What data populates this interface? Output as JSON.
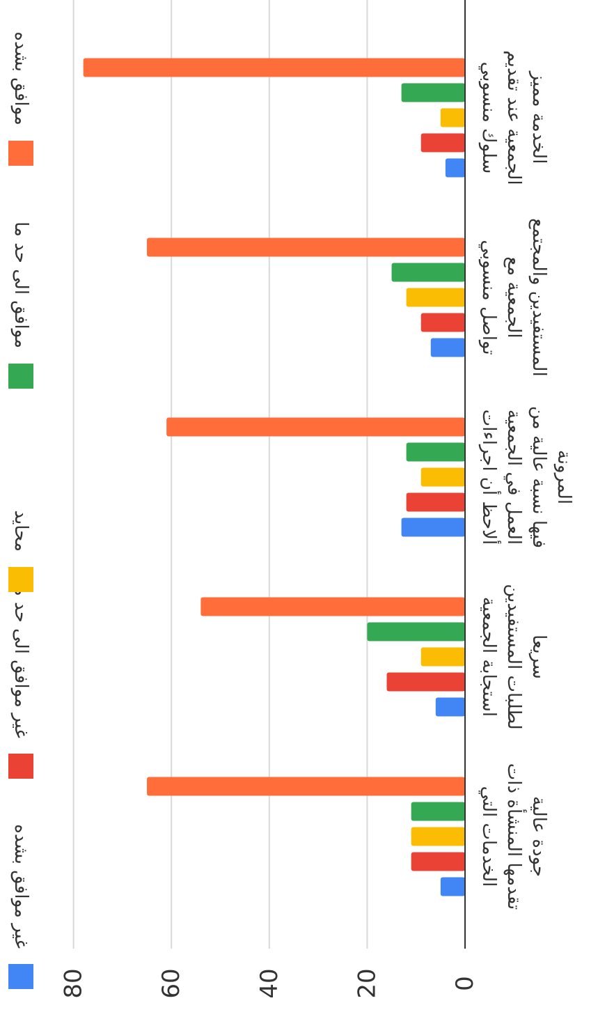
{
  "chart_data": {
    "type": "bar",
    "orientation": "rotated 90 degrees clockwise",
    "ylim": [
      0,
      80
    ],
    "y_ticks": [
      0,
      20,
      40,
      60,
      80
    ],
    "grid": true,
    "legend_position": "top",
    "categories": [
      [
        "سلوك منسوبي",
        "الجمعية عند تقديم",
        "الخدمة مميز"
      ],
      [
        "تواصل منسوبي",
        "الجمعية مع",
        "المستفيدين والمجتمع"
      ],
      [
        "ألاحظ أن اجراءات",
        "العمل في الجمعية",
        "فيها نسبة عالية من",
        "المرونة"
      ],
      [
        "استجابة الجمعية",
        "لطلبات المستفيدين",
        "سريعا"
      ],
      [
        "الخدمات التي",
        "تقدمها المنشأة ذات",
        "جودة عالية"
      ]
    ],
    "series": [
      {
        "name": "غير موافق بشده",
        "color": "#4285f4",
        "values": [
          4,
          7,
          13,
          6,
          5
        ]
      },
      {
        "name": "غير موافق الى حد ما",
        "color": "#ea4335",
        "values": [
          9,
          9,
          12,
          16,
          11
        ]
      },
      {
        "name": "محايد",
        "color": "#fbbc04",
        "values": [
          5,
          12,
          9,
          9,
          11
        ]
      },
      {
        "name": "موافق الى حد ما",
        "color": "#34a853",
        "values": [
          13,
          15,
          12,
          20,
          11
        ]
      },
      {
        "name": "موافق بشده",
        "color": "#ff6d3a",
        "values": [
          78,
          65,
          61,
          54,
          65
        ]
      }
    ]
  }
}
